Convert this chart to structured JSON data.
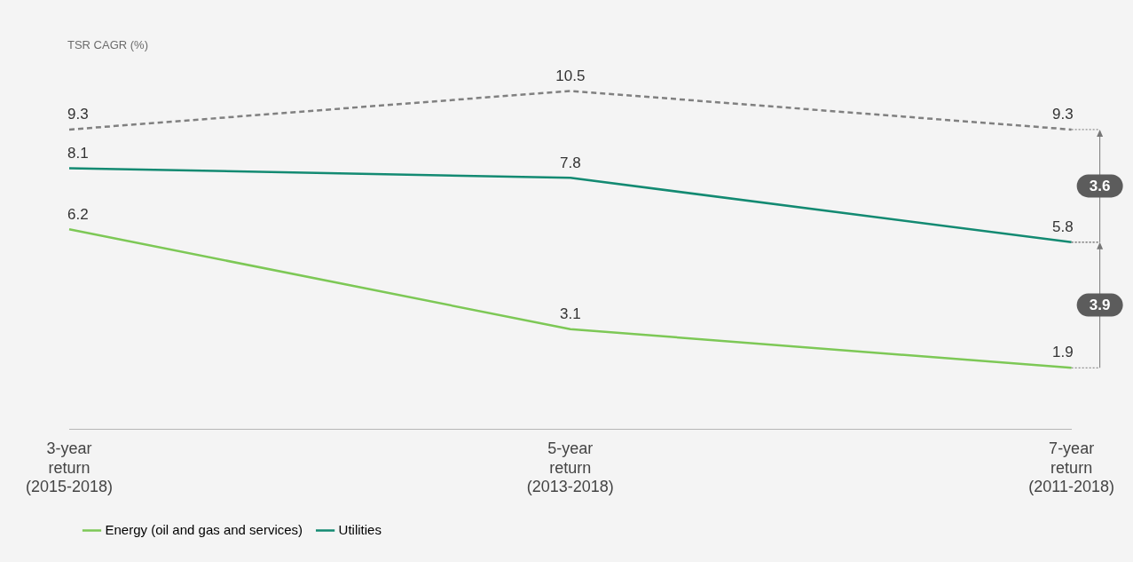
{
  "chart_data": {
    "type": "line",
    "categories": [
      "3-year\nreturn\n(2015-2018)",
      "5-year\nreturn\n(2013-2018)",
      "7-year\nreturn\n(2011-2018)"
    ],
    "series": [
      {
        "color": "#808080",
        "values": [
          9.3,
          10.5,
          9.3
        ],
        "line_style": "dashed"
      },
      {
        "name": "Energy (oil and gas and services)",
        "color": "#7dc856",
        "values": [
          6.2,
          3.1,
          1.9
        ]
      },
      {
        "name": "Utilities",
        "color": "#138a72",
        "values": [
          8.1,
          7.8,
          5.8
        ]
      }
    ],
    "data_labels": true,
    "grid": false,
    "legend": "bottom",
    "marker": "none",
    "annotations": [
      "TSR CAGR (%)",
      "3.6",
      "3.9"
    ]
  }
}
